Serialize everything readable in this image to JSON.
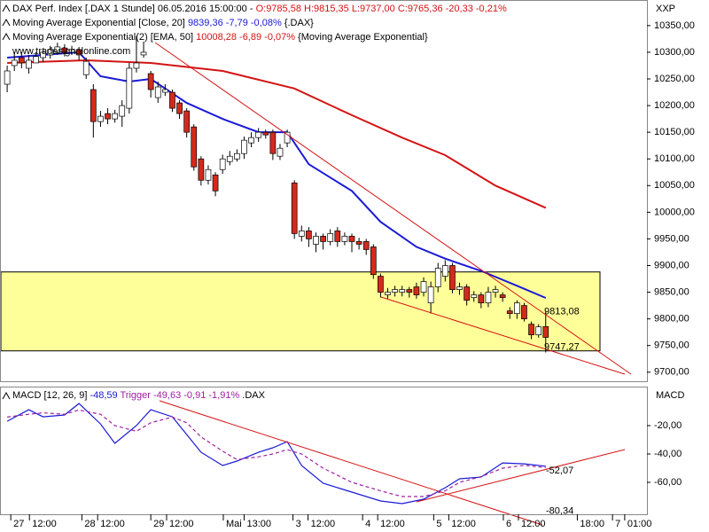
{
  "chart_data": [
    {
      "type": "candlestick",
      "title": "DAX Perf. Index [.DAX  1 Stunde] 06.05.2016 15:00:00 -",
      "title_values": "O:9785,58 H:9815,35 L:9737,00 C:9765,36 -20,33 -0,21%",
      "watermark": "www.tradesignalonline.com",
      "y_label": "XXP",
      "x": [
        0,
        1,
        2,
        3,
        4,
        5,
        6,
        7,
        8,
        9,
        10,
        11,
        12,
        13,
        14,
        15,
        16,
        17,
        18,
        19,
        20,
        21,
        22,
        23,
        24,
        25,
        26,
        27,
        28,
        29,
        30,
        31,
        32,
        33,
        34,
        35,
        36,
        37,
        38,
        39,
        40,
        41,
        42,
        43,
        44,
        45,
        46,
        47,
        48,
        49,
        50,
        51,
        52,
        53,
        54,
        55,
        56,
        57,
        58,
        59,
        60,
        61,
        62,
        63,
        64,
        65,
        66,
        67,
        68,
        69,
        70,
        71,
        72,
        73,
        74,
        75
      ],
      "open": [
        10240,
        10275,
        10290,
        10270,
        10280,
        10290,
        10295,
        10300,
        10308,
        10300,
        10305,
        10258,
        10230,
        10170,
        10185,
        10175,
        10180,
        10195,
        10270,
        10295,
        10260,
        10215,
        10225,
        10225,
        10205,
        10190,
        10160,
        10100,
        10060,
        10070,
        10080,
        10095,
        10100,
        10110,
        10130,
        10140,
        10150,
        10150,
        10105,
        10130,
        10055,
        9955,
        9965,
        9940,
        9955,
        9945,
        9965,
        9945,
        9955,
        9945,
        9945,
        9935,
        9880,
        9845,
        9850,
        9850,
        9855,
        9860,
        9850,
        9830,
        9860,
        9880,
        9900,
        9855,
        9860,
        9840,
        9845,
        9830,
        9850,
        9845,
        9815,
        9810,
        9825,
        9790,
        9770,
        9785.58
      ],
      "high": [
        10275,
        10300,
        10300,
        10295,
        10300,
        10308,
        10312,
        10318,
        10315,
        10312,
        10310,
        10290,
        10240,
        10190,
        10195,
        10192,
        10210,
        10280,
        10330,
        10320,
        10265,
        10245,
        10240,
        10230,
        10210,
        10195,
        10165,
        10105,
        10088,
        10075,
        10108,
        10115,
        10118,
        10142,
        10150,
        10158,
        10155,
        10155,
        10128,
        10155,
        10060,
        9975,
        9972,
        9962,
        9960,
        9968,
        9972,
        9962,
        9960,
        9952,
        9950,
        9940,
        9885,
        9858,
        9862,
        9862,
        9860,
        9868,
        9878,
        9870,
        9905,
        9910,
        9905,
        9868,
        9865,
        9852,
        9850,
        9860,
        9862,
        9850,
        9822,
        9835,
        9830,
        9795,
        9790,
        9815.35
      ],
      "low": [
        10225,
        10265,
        10270,
        10260,
        10280,
        10282,
        10288,
        10295,
        10292,
        10295,
        10285,
        10250,
        10140,
        10160,
        10165,
        10168,
        10160,
        10185,
        10262,
        10290,
        10215,
        10205,
        10218,
        10188,
        10175,
        10140,
        10078,
        10050,
        10052,
        10030,
        10072,
        10088,
        10095,
        10100,
        10122,
        10132,
        10138,
        10098,
        10098,
        10122,
        9950,
        9945,
        9935,
        9925,
        9930,
        9938,
        9935,
        9938,
        9925,
        9930,
        9920,
        9875,
        9840,
        9838,
        9842,
        9842,
        9840,
        9838,
        9842,
        9810,
        9850,
        9870,
        9848,
        9845,
        9825,
        9832,
        9820,
        9822,
        9840,
        9832,
        9800,
        9800,
        9795,
        9762,
        9765,
        9737
      ],
      "close": [
        10265,
        10285,
        10280,
        10285,
        10292,
        10300,
        10305,
        10310,
        10300,
        10305,
        10295,
        10283,
        10170,
        10180,
        10175,
        10185,
        10200,
        10270,
        10280,
        10300,
        10230,
        10235,
        10230,
        10195,
        10185,
        10150,
        10085,
        10060,
        10080,
        10040,
        10100,
        10105,
        10110,
        10135,
        10140,
        10150,
        10145,
        10110,
        10120,
        10150,
        9960,
        9965,
        9950,
        9955,
        9945,
        9960,
        9945,
        9955,
        9945,
        9940,
        9930,
        9883,
        9850,
        9850,
        9855,
        9855,
        9850,
        9845,
        9870,
        9860,
        9895,
        9900,
        9855,
        9860,
        9835,
        9845,
        9830,
        9850,
        9855,
        9840,
        9810,
        9830,
        9800,
        9770,
        9785,
        9765.36
      ],
      "up_color": "#ffffff",
      "down_color": "#d42a1c",
      "series": [
        {
          "name": "Moving Average Exponential [Close, 20]",
          "legend_values": "9839,36 -7,79 -0,08%",
          "source": "{.DAX}",
          "color": "#1a1ad6",
          "x": [
            0,
            10,
            13,
            17,
            20,
            25,
            30,
            35,
            39,
            42,
            48,
            52,
            57,
            61,
            66,
            71,
            75
          ],
          "values": [
            10290,
            10300,
            10255,
            10245,
            10250,
            10205,
            10175,
            10150,
            10150,
            10090,
            10040,
            9982,
            9935,
            9913,
            9890,
            9862,
            9839.36
          ]
        },
        {
          "name": "Moving Average Exponential(2) [EMA, 50]",
          "legend_values": "10008,28 -6,89 -0,07%",
          "source": "{Moving Average Exponential}",
          "color": "#d41414",
          "x": [
            0,
            11,
            20,
            30,
            40,
            48,
            55,
            61,
            68,
            75
          ],
          "values": [
            10280,
            10285,
            10280,
            10265,
            10232,
            10182,
            10140,
            10107,
            10050,
            10008.28
          ]
        }
      ],
      "highlight_band": [
        9740,
        9888
      ],
      "highlight_color": "#ffff99",
      "annotations": [
        {
          "value": 9813.08,
          "label": "9813,08"
        },
        {
          "value": 9747.27,
          "label": "9747,27"
        }
      ],
      "xlim": [
        -1,
        89.1
      ],
      "ylim": [
        9683,
        10398
      ],
      "yticks": [
        {
          "value": 9700,
          "label": "9700,00"
        },
        {
          "value": 9750,
          "label": "9750,00"
        },
        {
          "value": 9800,
          "label": "9800,00"
        },
        {
          "value": 9850,
          "label": "9850,00"
        },
        {
          "value": 9900,
          "label": "9900,00"
        },
        {
          "value": 9950,
          "label": "9950,00"
        },
        {
          "value": 10000,
          "label": "10000,00"
        },
        {
          "value": 10050,
          "label": "10050,00"
        },
        {
          "value": 10100,
          "label": "10100,00"
        },
        {
          "value": 10150,
          "label": "10150,00"
        },
        {
          "value": 10200,
          "label": "10200,00"
        },
        {
          "value": 10250,
          "label": "10250,00"
        },
        {
          "value": 10300,
          "label": "10300,00"
        },
        {
          "value": 10350,
          "label": "10350,00"
        }
      ]
    },
    {
      "type": "line",
      "title": "MACD [12, 26, 9]",
      "source": ".DAX",
      "y_label": "MACD",
      "series": [
        {
          "name": "MACD [12, 26, 9]",
          "legend_values": "-48,59",
          "color": "#1a1ad6",
          "dashed": false,
          "x": [
            0,
            3,
            5,
            8,
            10,
            13,
            15,
            18,
            20,
            23,
            25,
            27,
            30,
            32,
            35,
            37,
            39,
            41,
            44,
            48,
            52,
            55,
            58,
            61,
            63,
            66,
            69,
            72,
            75
          ],
          "values": [
            -16.9,
            -8.8,
            -13.8,
            -12.5,
            -4.4,
            -18.8,
            -32.5,
            -20,
            -8.8,
            -13.8,
            -26.3,
            -38.8,
            -48.1,
            -45,
            -38.8,
            -35.6,
            -31.3,
            -48.1,
            -60.6,
            -66.9,
            -73.1,
            -75,
            -71.9,
            -63.8,
            -57.5,
            -56.3,
            -46.3,
            -46.9,
            -48.59
          ]
        },
        {
          "name": "Trigger",
          "legend_values": "-49,63 -0,91 -1,91%",
          "color": "#a020a0",
          "dashed": true,
          "x": [
            0,
            3,
            5,
            8,
            10,
            13,
            15,
            18,
            20,
            23,
            25,
            27,
            30,
            32,
            35,
            37,
            39,
            41,
            44,
            48,
            52,
            55,
            58,
            61,
            63,
            66,
            69,
            72,
            75
          ],
          "values": [
            -14,
            -12,
            -11,
            -12,
            -9,
            -12,
            -20,
            -24,
            -18,
            -14,
            -18,
            -28,
            -38,
            -44,
            -42,
            -40,
            -37,
            -40,
            -50,
            -60,
            -66,
            -70,
            -70,
            -66,
            -60,
            -56,
            -50,
            -48,
            -49.63
          ]
        }
      ],
      "annotations": [
        {
          "value": -52.07,
          "label": "-52,07"
        },
        {
          "value": -80.34,
          "label": "-80,34"
        }
      ],
      "xlim": [
        -1,
        89.1
      ],
      "ylim": [
        -82.5,
        6.9
      ],
      "yticks": [
        {
          "value": -20,
          "label": "-20,00"
        },
        {
          "value": -40,
          "label": "-40,00"
        },
        {
          "value": -60,
          "label": "-60,00"
        }
      ],
      "xticks": [
        {
          "value": 0.5,
          "label": "27"
        },
        {
          "value": 3.1,
          "label": "12:00"
        },
        {
          "value": 10.4,
          "label": "28"
        },
        {
          "value": 12.6,
          "label": "12:00"
        },
        {
          "value": 20,
          "label": "29"
        },
        {
          "value": 22.2,
          "label": "12:00"
        },
        {
          "value": 30.1,
          "label": "Mai"
        },
        {
          "value": 33,
          "label": "13:00"
        },
        {
          "value": 39.8,
          "label": "3"
        },
        {
          "value": 41.9,
          "label": "12:00"
        },
        {
          "value": 49.5,
          "label": "4"
        },
        {
          "value": 51.6,
          "label": "12:00"
        },
        {
          "value": 59.4,
          "label": "5"
        },
        {
          "value": 61.5,
          "label": "12:00"
        },
        {
          "value": 69.1,
          "label": "6"
        },
        {
          "value": 71.2,
          "label": "12:00"
        },
        {
          "value": 79.4,
          "label": "18:00"
        },
        {
          "value": 84.3,
          "label": "7"
        },
        {
          "value": 86,
          "label": "01:00"
        }
      ]
    }
  ]
}
